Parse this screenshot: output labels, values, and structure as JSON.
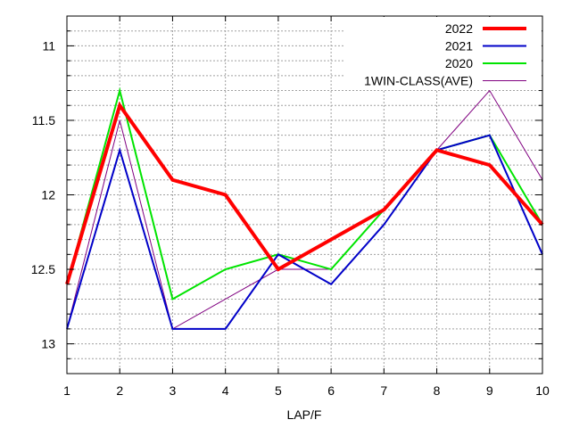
{
  "chart_data": {
    "type": "line",
    "title": "",
    "xlabel": "LAP/F",
    "ylabel": "",
    "x": [
      1,
      2,
      3,
      4,
      5,
      6,
      7,
      8,
      9,
      10
    ],
    "xlim": [
      1,
      10
    ],
    "ylim": [
      13.2,
      10.8
    ],
    "y_inverted": true,
    "yticks": [
      11,
      11.5,
      12,
      12.5,
      13
    ],
    "ytick_labels": [
      "11",
      "11.5",
      "12",
      "12.5",
      "13"
    ],
    "xticks": [
      1,
      2,
      3,
      4,
      5,
      6,
      7,
      8,
      9,
      10
    ],
    "xtick_labels": [
      "1",
      "2",
      "3",
      "4",
      "5",
      "6",
      "7",
      "8",
      "9",
      "10"
    ],
    "grid": true,
    "legend_position": "top-right",
    "series": [
      {
        "name": "2022",
        "color": "#ff0000",
        "values": [
          12.6,
          11.4,
          11.9,
          12.0,
          12.5,
          12.3,
          12.1,
          11.7,
          11.8,
          12.2
        ]
      },
      {
        "name": "2021",
        "color": "#0000c8",
        "values": [
          12.9,
          11.7,
          12.9,
          12.9,
          12.4,
          12.6,
          12.2,
          11.7,
          11.6,
          12.4
        ]
      },
      {
        "name": "2020",
        "color": "#00e400",
        "values": [
          12.6,
          11.3,
          12.7,
          12.5,
          12.4,
          12.5,
          12.1,
          11.7,
          11.6,
          12.2
        ]
      },
      {
        "name": "1WIN-CLASS(AVE)",
        "color": "#800080",
        "values": [
          12.9,
          11.5,
          12.9,
          12.7,
          12.5,
          12.5,
          12.1,
          11.7,
          11.3,
          11.9
        ]
      }
    ]
  }
}
